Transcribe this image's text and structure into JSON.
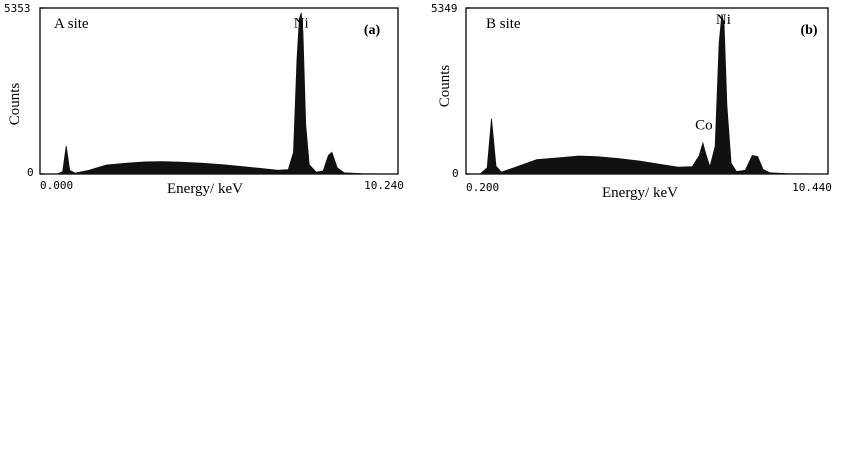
{
  "chart_data": [
    {
      "type": "area",
      "panel_label": "(a)",
      "site_label": "A site",
      "xlabel": "Energy/ keV",
      "ylabel": "Counts",
      "xlim": [
        0.0,
        10.24
      ],
      "ylim": [
        0,
        5353
      ],
      "x_tick_labels": [
        "0.000",
        "10.240"
      ],
      "y_tick_labels": [
        "5353",
        "0"
      ],
      "peak_labels": [
        {
          "text": "Ni",
          "x": 7.47,
          "y": 4600
        }
      ],
      "fill_color": "#111111",
      "series": [
        {
          "x": [
            0.0,
            0.5,
            0.65,
            0.75,
            0.85,
            1.0,
            1.4,
            1.9,
            2.5,
            3.0,
            3.5,
            4.0,
            4.6,
            5.2,
            5.8,
            6.3,
            6.8,
            7.1,
            7.25,
            7.35,
            7.42,
            7.47,
            7.52,
            7.6,
            7.7,
            7.9,
            8.1,
            8.25,
            8.35,
            8.5,
            8.7,
            9.2,
            10.24
          ],
          "y": [
            0,
            0,
            80,
            900,
            120,
            30,
            120,
            290,
            350,
            390,
            400,
            380,
            350,
            300,
            240,
            180,
            120,
            140,
            700,
            3700,
            5000,
            5200,
            4600,
            1600,
            300,
            60,
            100,
            600,
            700,
            200,
            40,
            10,
            0
          ]
        }
      ]
    },
    {
      "type": "area",
      "panel_label": "(b)",
      "site_label": "B site",
      "xlabel": "Energy/ keV",
      "ylabel": "Counts",
      "xlim": [
        0.2,
        10.44
      ],
      "ylim": [
        0,
        5349
      ],
      "x_tick_labels": [
        "0.200",
        "10.440"
      ],
      "y_tick_labels": [
        "5349",
        "0"
      ],
      "peak_labels": [
        {
          "text": "Ni",
          "x": 7.48,
          "y": 4700
        },
        {
          "text": "Co",
          "x": 6.93,
          "y": 1300
        }
      ],
      "fill_color": "#111111",
      "series": [
        {
          "x": [
            0.2,
            0.6,
            0.8,
            0.92,
            1.05,
            1.2,
            1.6,
            2.2,
            2.8,
            3.4,
            3.9,
            4.5,
            5.1,
            5.7,
            6.2,
            6.6,
            6.8,
            6.9,
            6.97,
            7.1,
            7.25,
            7.36,
            7.44,
            7.5,
            7.58,
            7.7,
            7.85,
            8.1,
            8.3,
            8.45,
            8.6,
            8.8,
            9.3,
            10.44
          ],
          "y": [
            0,
            0,
            200,
            1780,
            250,
            60,
            220,
            460,
            520,
            580,
            560,
            500,
            420,
            310,
            220,
            240,
            600,
            1000,
            700,
            230,
            900,
            4200,
            5150,
            4800,
            2200,
            350,
            80,
            120,
            600,
            560,
            150,
            40,
            10,
            0
          ]
        }
      ]
    }
  ]
}
